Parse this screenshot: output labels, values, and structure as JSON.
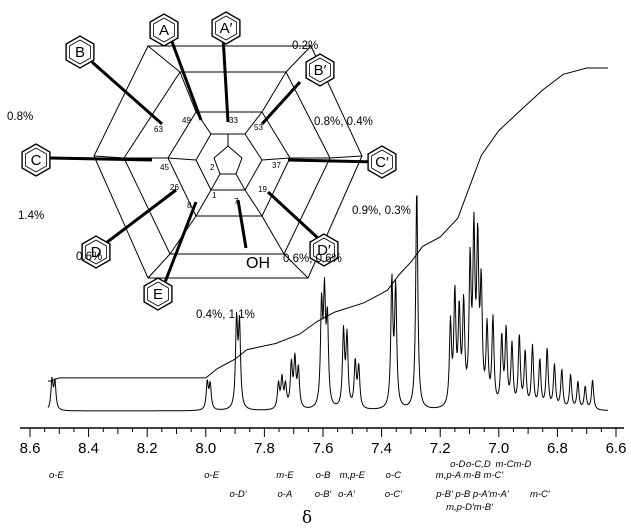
{
  "chart_data": {
    "type": "line",
    "title": "",
    "xlabel": "δ",
    "ylabel": "",
    "x_reversed": true,
    "xlim": [
      8.6,
      6.6
    ],
    "x_ticks": [
      "8.6",
      "8.4",
      "8.2",
      "8.0",
      "7.8",
      "7.6",
      "7.4",
      "7.2",
      "7.0",
      "6.8",
      "6.6"
    ],
    "grid": false,
    "legend": "none",
    "series": [
      {
        "kind": "spectrum",
        "peaks": [
          {
            "x": 8.525,
            "h": 0.13
          },
          {
            "x": 8.515,
            "h": 0.12
          },
          {
            "x": 7.995,
            "h": 0.12
          },
          {
            "x": 7.985,
            "h": 0.11
          },
          {
            "x": 7.895,
            "h": 0.38
          },
          {
            "x": 7.885,
            "h": 0.36
          },
          {
            "x": 7.752,
            "h": 0.11
          },
          {
            "x": 7.74,
            "h": 0.13
          },
          {
            "x": 7.728,
            "h": 0.1
          },
          {
            "x": 7.708,
            "h": 0.19
          },
          {
            "x": 7.696,
            "h": 0.21
          },
          {
            "x": 7.684,
            "h": 0.17
          },
          {
            "x": 7.605,
            "h": 0.43
          },
          {
            "x": 7.595,
            "h": 0.46
          },
          {
            "x": 7.585,
            "h": 0.37
          },
          {
            "x": 7.53,
            "h": 0.33
          },
          {
            "x": 7.518,
            "h": 0.31
          },
          {
            "x": 7.49,
            "h": 0.2
          },
          {
            "x": 7.478,
            "h": 0.18
          },
          {
            "x": 7.365,
            "h": 0.55
          },
          {
            "x": 7.352,
            "h": 0.52
          },
          {
            "x": 7.28,
            "h": 0.97
          },
          {
            "x": 7.165,
            "h": 0.36
          },
          {
            "x": 7.15,
            "h": 0.48
          },
          {
            "x": 7.135,
            "h": 0.4
          },
          {
            "x": 7.12,
            "h": 0.43
          },
          {
            "x": 7.098,
            "h": 0.6
          },
          {
            "x": 7.085,
            "h": 0.72
          },
          {
            "x": 7.072,
            "h": 0.68
          },
          {
            "x": 7.06,
            "h": 0.5
          },
          {
            "x": 7.04,
            "h": 0.34
          },
          {
            "x": 7.02,
            "h": 0.38
          },
          {
            "x": 6.99,
            "h": 0.3
          },
          {
            "x": 6.975,
            "h": 0.33
          },
          {
            "x": 6.955,
            "h": 0.27
          },
          {
            "x": 6.93,
            "h": 0.31
          },
          {
            "x": 6.91,
            "h": 0.24
          },
          {
            "x": 6.885,
            "h": 0.27
          },
          {
            "x": 6.86,
            "h": 0.21
          },
          {
            "x": 6.835,
            "h": 0.26
          },
          {
            "x": 6.81,
            "h": 0.19
          },
          {
            "x": 6.785,
            "h": 0.17
          },
          {
            "x": 6.755,
            "h": 0.15
          },
          {
            "x": 6.73,
            "h": 0.12
          },
          {
            "x": 6.705,
            "h": 0.1
          },
          {
            "x": 6.68,
            "h": 0.13
          }
        ]
      },
      {
        "kind": "integral",
        "points": [
          [
            8.6,
            0.0
          ],
          [
            8.53,
            0.0
          ],
          [
            8.5,
            0.01
          ],
          [
            8.0,
            0.01
          ],
          [
            7.96,
            0.04
          ],
          [
            7.9,
            0.07
          ],
          [
            7.86,
            0.1
          ],
          [
            7.76,
            0.12
          ],
          [
            7.68,
            0.15
          ],
          [
            7.62,
            0.19
          ],
          [
            7.56,
            0.22
          ],
          [
            7.46,
            0.25
          ],
          [
            7.38,
            0.29
          ],
          [
            7.34,
            0.34
          ],
          [
            7.3,
            0.38
          ],
          [
            7.26,
            0.43
          ],
          [
            7.2,
            0.46
          ],
          [
            7.14,
            0.52
          ],
          [
            7.1,
            0.62
          ],
          [
            7.06,
            0.72
          ],
          [
            7.0,
            0.8
          ],
          [
            6.92,
            0.87
          ],
          [
            6.85,
            0.93
          ],
          [
            6.78,
            0.98
          ],
          [
            6.7,
            1.0
          ],
          [
            6.6,
            1.0
          ]
        ]
      }
    ],
    "annotations": [
      {
        "x": 8.51,
        "row": 1,
        "text": "o-E"
      },
      {
        "x": 7.98,
        "row": 1,
        "text": "o-E"
      },
      {
        "x": 7.89,
        "row": 2,
        "text": "o-D′"
      },
      {
        "x": 7.73,
        "row": 1,
        "text": "m-E"
      },
      {
        "x": 7.73,
        "row": 2,
        "text": "o-A"
      },
      {
        "x": 7.6,
        "row": 1,
        "text": "o-B"
      },
      {
        "x": 7.6,
        "row": 2,
        "text": "o-B′"
      },
      {
        "x": 7.5,
        "row": 1,
        "text": "m,p-E"
      },
      {
        "x": 7.52,
        "row": 2,
        "text": "o-A′"
      },
      {
        "x": 7.36,
        "row": 1,
        "text": "o-C"
      },
      {
        "x": 7.36,
        "row": 2,
        "text": "o-C′"
      },
      {
        "x": 7.14,
        "row": 0,
        "text": "o-D"
      },
      {
        "x": 7.07,
        "row": 0,
        "text": "o-C,D"
      },
      {
        "x": 6.95,
        "row": 0,
        "text": "m-Cm-D"
      },
      {
        "x": 7.1,
        "row": 1,
        "text": "m,p-A m-B m-C′"
      },
      {
        "x": 7.09,
        "row": 2,
        "text": "p-B′ p-B  p-A′m-A′"
      },
      {
        "x": 6.86,
        "row": 2,
        "text": "m-C′"
      },
      {
        "x": 7.1,
        "row": 3,
        "text": "m,p-D′m-B′"
      }
    ]
  },
  "structure": {
    "rings": [
      {
        "id": "A",
        "label": "A"
      },
      {
        "id": "A2",
        "label": "A′"
      },
      {
        "id": "B",
        "label": "B"
      },
      {
        "id": "B2",
        "label": "B′"
      },
      {
        "id": "C",
        "label": "C"
      },
      {
        "id": "C2",
        "label": "C′"
      },
      {
        "id": "D",
        "label": "D"
      },
      {
        "id": "D2",
        "label": "D′"
      },
      {
        "id": "E",
        "label": "E"
      }
    ],
    "oh_label": "OH",
    "atom_numbers": [
      "1",
      "2",
      "7",
      "8",
      "19",
      "26",
      "33",
      "37",
      "45",
      "49",
      "53",
      "63"
    ],
    "nOe_labels": [
      "0.2%",
      "0.8%",
      "0.8%, 0.4%",
      "1.4%",
      "0.9%, 0.3%",
      "0.6%",
      "0.6%, 0.6%",
      "0.4%, 1.1%"
    ]
  }
}
